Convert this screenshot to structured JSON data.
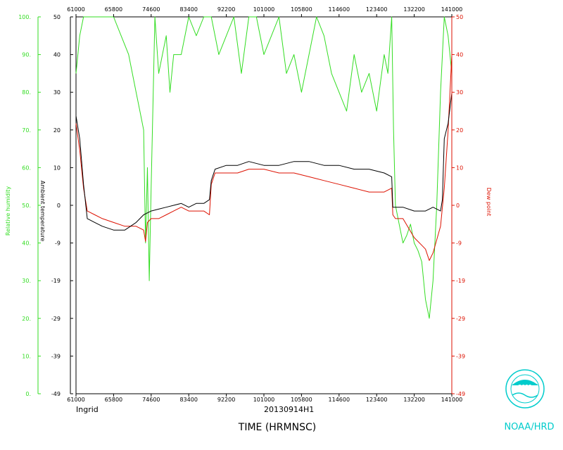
{
  "chart_data": {
    "type": "line",
    "xlabel": "TIME (HRMNSC)",
    "storm_label": "Ingrid",
    "flight_label": "20130914H1",
    "credit": "NOAA/HRD",
    "logo_text": "noaa",
    "y_left_outer_label": "Relative humidity",
    "y_left_inner_label": "Ambient temperature",
    "y_right_label": "Dew point",
    "colors": {
      "rh": "#33dd22",
      "temp": "#000000",
      "dew": "#dd1100"
    },
    "x_ticks": [
      "61000",
      "65800",
      "74600",
      "83400",
      "92200",
      "101000",
      "105800",
      "114600",
      "123400",
      "132200",
      "141000"
    ],
    "rh_ticks": [
      "100.",
      "90.",
      "80.",
      "70.",
      "60.",
      "50.",
      "40.",
      "30.",
      "20.",
      "10.",
      "0."
    ],
    "temp_ticks": [
      "50",
      "40",
      "30",
      "20",
      "10",
      "0",
      "-9",
      "-19",
      "-29",
      "-39",
      "-49"
    ],
    "dew_ticks": [
      "50",
      "40",
      "30",
      "20",
      "10",
      "0",
      "-9",
      "-19",
      "-29",
      "-39",
      "-49"
    ],
    "ylim_rh": [
      0,
      100
    ],
    "ylim_temp": [
      -49,
      50
    ],
    "series": [
      {
        "name": "Ambient temperature",
        "x": [
          0.0,
          0.01,
          0.02,
          0.03,
          0.05,
          0.07,
          0.1,
          0.13,
          0.16,
          0.18,
          0.2,
          0.22,
          0.24,
          0.26,
          0.28,
          0.3,
          0.32,
          0.34,
          0.355,
          0.36,
          0.37,
          0.4,
          0.43,
          0.46,
          0.5,
          0.54,
          0.58,
          0.62,
          0.66,
          0.7,
          0.74,
          0.78,
          0.82,
          0.84,
          0.843,
          0.85,
          0.87,
          0.9,
          0.93,
          0.95,
          0.97,
          0.975,
          0.98,
          0.99,
          1.0
        ],
        "y": [
          24,
          18,
          6,
          -3,
          -4,
          -5,
          -6,
          -6,
          -4,
          -2,
          -1,
          -0.5,
          0,
          0.5,
          1,
          0,
          1,
          1,
          2,
          7,
          10,
          11,
          11,
          12,
          11,
          11,
          12,
          12,
          11,
          11,
          10,
          10,
          9,
          8,
          0,
          0,
          0,
          -1,
          -1,
          0,
          -1,
          2,
          18,
          22,
          30
        ]
      },
      {
        "name": "Dew point",
        "x": [
          0.0,
          0.01,
          0.02,
          0.03,
          0.05,
          0.07,
          0.1,
          0.13,
          0.16,
          0.18,
          0.185,
          0.19,
          0.2,
          0.22,
          0.24,
          0.26,
          0.28,
          0.3,
          0.32,
          0.34,
          0.355,
          0.36,
          0.37,
          0.4,
          0.43,
          0.46,
          0.5,
          0.54,
          0.58,
          0.62,
          0.66,
          0.7,
          0.74,
          0.78,
          0.82,
          0.84,
          0.843,
          0.85,
          0.87,
          0.9,
          0.92,
          0.93,
          0.94,
          0.95,
          0.97,
          0.98,
          0.99,
          1.0
        ],
        "y": [
          22,
          15,
          5,
          -1,
          -2,
          -3,
          -4,
          -5,
          -5,
          -6,
          -9,
          -4,
          -3,
          -3,
          -2,
          -1,
          0,
          -1,
          -1,
          -1,
          -2,
          6,
          9,
          9,
          9,
          10,
          10,
          9,
          9,
          8,
          7,
          6,
          5,
          4,
          4,
          5,
          -2,
          -3,
          -3,
          -8,
          -10,
          -11,
          -14,
          -12,
          -5,
          5,
          20,
          40
        ]
      },
      {
        "name": "Relative humidity",
        "x": [
          0.0,
          0.01,
          0.02,
          0.03,
          0.04,
          0.05,
          0.06,
          0.08,
          0.1,
          0.12,
          0.14,
          0.16,
          0.17,
          0.18,
          0.185,
          0.19,
          0.195,
          0.2,
          0.21,
          0.22,
          0.23,
          0.24,
          0.25,
          0.26,
          0.28,
          0.3,
          0.32,
          0.34,
          0.36,
          0.38,
          0.4,
          0.42,
          0.44,
          0.46,
          0.48,
          0.5,
          0.52,
          0.54,
          0.56,
          0.58,
          0.6,
          0.62,
          0.64,
          0.66,
          0.68,
          0.7,
          0.72,
          0.74,
          0.76,
          0.78,
          0.8,
          0.82,
          0.83,
          0.84,
          0.845,
          0.85,
          0.86,
          0.87,
          0.88,
          0.89,
          0.9,
          0.91,
          0.92,
          0.93,
          0.94,
          0.95,
          0.96,
          0.97,
          0.98,
          0.99,
          1.0
        ],
        "y": [
          85,
          95,
          100,
          100,
          100,
          100,
          100,
          100,
          100,
          95,
          90,
          80,
          75,
          70,
          40,
          60,
          30,
          55,
          100,
          85,
          90,
          95,
          80,
          90,
          90,
          100,
          95,
          100,
          100,
          90,
          95,
          100,
          85,
          100,
          100,
          90,
          95,
          100,
          85,
          90,
          80,
          90,
          100,
          95,
          85,
          80,
          75,
          90,
          80,
          85,
          75,
          90,
          85,
          100,
          70,
          50,
          45,
          40,
          42,
          45,
          40,
          38,
          35,
          25,
          20,
          30,
          50,
          80,
          100,
          95,
          85
        ]
      }
    ]
  }
}
